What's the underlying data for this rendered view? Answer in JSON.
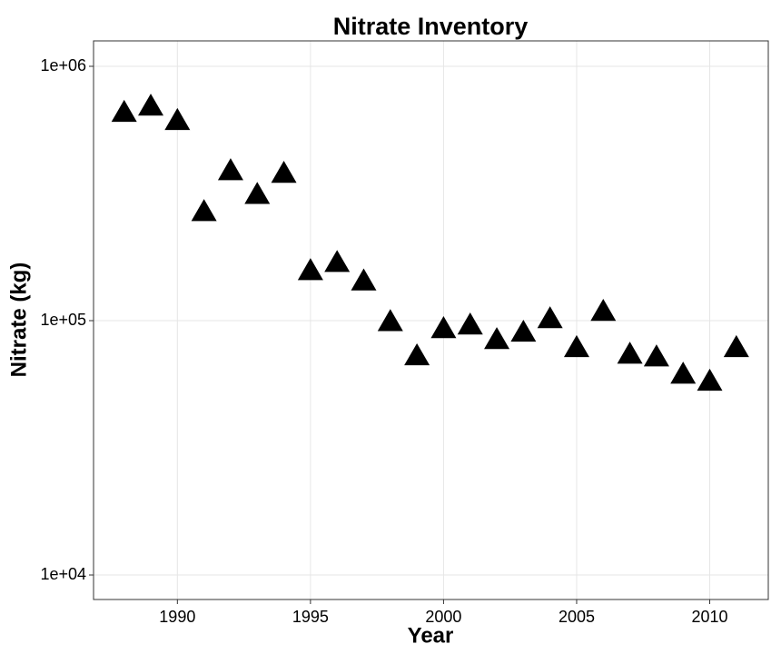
{
  "chart_data": {
    "type": "scatter",
    "title": "Nitrate Inventory",
    "x_label": "Year",
    "y_label": "Nitrate (kg)",
    "marker": "triangle",
    "color": "#000000",
    "log_y": true,
    "grid": true,
    "x": [
      1988,
      1989,
      1990,
      1991,
      1992,
      1993,
      1994,
      1995,
      1996,
      1997,
      1998,
      1999,
      2000,
      2001,
      2002,
      2003,
      2004,
      2005,
      2006,
      2007,
      2008,
      2009,
      2010,
      2011
    ],
    "values": [
      658000,
      696000,
      611000,
      268000,
      388000,
      313000,
      379000,
      157000,
      169000,
      143000,
      99000,
      72600,
      92900,
      96000,
      84100,
      89900,
      101600,
      78200,
      108600,
      73700,
      71900,
      61500,
      57700,
      78200
    ],
    "xlim": [
      1986.85,
      2012.2
    ],
    "xticks": [
      1990,
      1995,
      2000,
      2005,
      2010
    ],
    "ylim": [
      8010,
      1259000
    ],
    "yticks": [
      {
        "value": 10000,
        "label": "1e+04"
      },
      {
        "value": 100000,
        "label": "1e+05"
      },
      {
        "value": 1000000,
        "label": "1e+06"
      }
    ]
  }
}
